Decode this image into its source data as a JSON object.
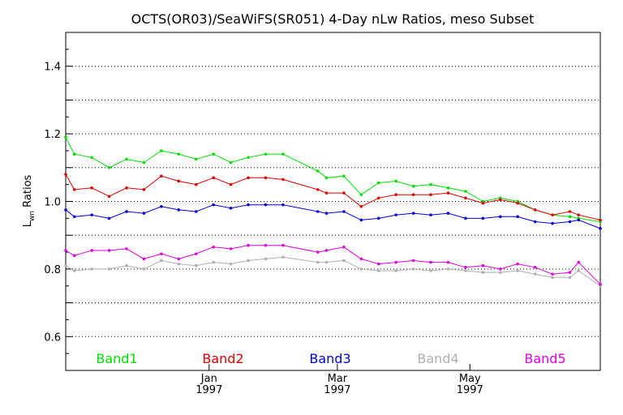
{
  "chart_data": {
    "type": "line",
    "title": "OCTS(OR03)/SeaWiFS(SR051) 4-Day nLw Ratios, meso Subset",
    "ylabel_main": "L",
    "ylabel_sub": "wn",
    "ylabel_rest": " Ratios",
    "ylim": [
      0.5,
      1.5
    ],
    "yticks": [
      "0.6",
      "0.8",
      "1.0",
      "1.2",
      "1.4"
    ],
    "xlim": [
      "1996-10-27",
      "1997-06-30"
    ],
    "xticks": [
      {
        "date": "1997-01-01",
        "month": "Jan",
        "year": "1997"
      },
      {
        "date": "1997-03-01",
        "month": "Mar",
        "year": "1997"
      },
      {
        "date": "1997-05-01",
        "month": "May",
        "year": "1997"
      }
    ],
    "grid": "horizontal dotted",
    "legend_position": "bottom",
    "x": [
      "1996-10-27",
      "1996-10-31",
      "1996-11-08",
      "1996-11-16",
      "1996-11-24",
      "1996-12-02",
      "1996-12-10",
      "1996-12-18",
      "1996-12-26",
      "1997-01-03",
      "1997-01-11",
      "1997-01-19",
      "1997-01-27",
      "1997-02-04",
      "1997-02-20",
      "1997-02-24",
      "1997-03-04",
      "1997-03-12",
      "1997-03-20",
      "1997-03-28",
      "1997-04-05",
      "1997-04-13",
      "1997-04-21",
      "1997-04-29",
      "1997-05-07",
      "1997-05-15",
      "1997-05-23",
      "1997-05-31",
      "1997-06-08",
      "1997-06-16",
      "1997-06-20",
      "1997-06-30"
    ],
    "series": [
      {
        "name": "Band1",
        "color": "#00e000",
        "values": [
          1.19,
          1.14,
          1.13,
          1.1,
          1.125,
          1.115,
          1.15,
          1.14,
          1.125,
          1.14,
          1.115,
          1.13,
          1.14,
          1.14,
          1.09,
          1.07,
          1.075,
          1.02,
          1.055,
          1.06,
          1.045,
          1.05,
          1.04,
          1.03,
          1.0,
          1.01,
          1.0,
          0.975,
          0.96,
          0.955,
          0.95,
          0.94
        ]
      },
      {
        "name": "Band2",
        "color": "#e00000",
        "values": [
          1.08,
          1.035,
          1.04,
          1.015,
          1.04,
          1.035,
          1.075,
          1.06,
          1.05,
          1.07,
          1.05,
          1.07,
          1.07,
          1.065,
          1.035,
          1.025,
          1.025,
          0.985,
          1.01,
          1.02,
          1.02,
          1.02,
          1.025,
          1.01,
          0.995,
          1.005,
          0.995,
          0.975,
          0.96,
          0.97,
          0.96,
          0.945
        ]
      },
      {
        "name": "Band3",
        "color": "#0000e0",
        "values": [
          0.975,
          0.955,
          0.96,
          0.95,
          0.97,
          0.965,
          0.985,
          0.975,
          0.97,
          0.99,
          0.98,
          0.99,
          0.99,
          0.99,
          0.97,
          0.965,
          0.97,
          0.945,
          0.95,
          0.96,
          0.965,
          0.96,
          0.965,
          0.95,
          0.95,
          0.955,
          0.955,
          0.94,
          0.935,
          0.94,
          0.945,
          0.92
        ]
      },
      {
        "name": "Band4",
        "color": "#b0b0b0",
        "values": [
          0.81,
          0.795,
          0.8,
          0.8,
          0.81,
          0.8,
          0.825,
          0.815,
          0.81,
          0.82,
          0.815,
          0.825,
          0.83,
          0.835,
          0.82,
          0.82,
          0.825,
          0.8,
          0.795,
          0.795,
          0.8,
          0.795,
          0.8,
          0.795,
          0.79,
          0.79,
          0.795,
          0.785,
          0.775,
          0.775,
          0.795,
          0.75
        ]
      },
      {
        "name": "Band5",
        "color": "#e000e0",
        "values": [
          0.855,
          0.84,
          0.855,
          0.855,
          0.86,
          0.83,
          0.845,
          0.83,
          0.845,
          0.865,
          0.86,
          0.87,
          0.87,
          0.87,
          0.85,
          0.855,
          0.865,
          0.83,
          0.815,
          0.82,
          0.825,
          0.82,
          0.82,
          0.805,
          0.81,
          0.8,
          0.815,
          0.805,
          0.785,
          0.79,
          0.82,
          0.755
        ]
      }
    ]
  }
}
